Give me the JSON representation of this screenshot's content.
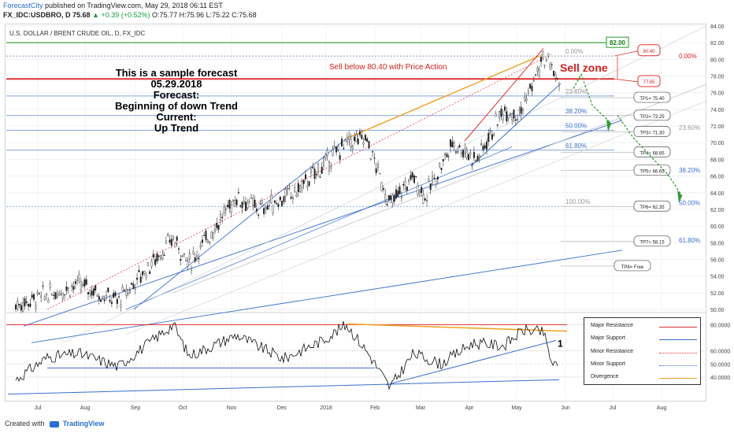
{
  "header": {
    "author": "ForecastCity",
    "published": "published on TradingView.com, May 29, 2018 06:11 EST",
    "symbol_line": "FX_IDC:USDBRO, D 75.68",
    "change": "+0.39 (+0.52%)",
    "ohlc": "O:75.77 H:75.96 L:75.22 C:75.68"
  },
  "chart": {
    "subtitle": "U.S. DOLLAR / BRENT CRUDE OIL, D, FX_IDC",
    "forecast_lines": [
      "This is a sample forecast",
      "05.29.2018",
      "Forecast:",
      "Beginning of down Trend",
      "Current:",
      "Up Trend"
    ],
    "sell_note": "Sell below 80.40 with Price Action",
    "sell_zone": "Sell zone",
    "price_axis": [
      "84.00",
      "82.00",
      "80.00",
      "78.00",
      "76.00",
      "74.00",
      "72.00",
      "70.00",
      "68.00",
      "66.00",
      "64.00",
      "62.00",
      "60.00",
      "58.00",
      "56.00",
      "54.00",
      "52.00",
      "50.00"
    ],
    "rsi_axis": [
      "80.0000",
      "60.0000",
      "50.0000",
      "40.0000"
    ],
    "time_axis": [
      "Jul",
      "Aug",
      "Sep",
      "Oct",
      "Nov",
      "Dec",
      "2018",
      "Feb",
      "Mar",
      "Apr",
      "May",
      "Jun",
      "Jul",
      "Aug"
    ],
    "level_82": "82.00",
    "zone_labels": [
      "80.40",
      "77.65"
    ],
    "tp_labels": [
      "TP1= 75.40",
      "TP2= 73.25",
      "TP3= 71.30",
      "TP4= 68.85",
      "TP5= 66.65",
      "TP6= 62.35",
      "TP7= 58.15",
      "TP8= Free"
    ],
    "fib_left": [
      "0.00%",
      "23.60%",
      "38.20%",
      "50.00%",
      "61.80%",
      "100.00%"
    ],
    "fib_right": [
      "0.00%",
      "23.60%",
      "38.20%",
      "50.00%",
      "61.80%"
    ],
    "rsi_marker": "1"
  },
  "legend": {
    "items": [
      {
        "label": "Major Resistance",
        "color": "#e03030",
        "style": "solid"
      },
      {
        "label": "Major Support",
        "color": "#3a6fd0",
        "style": "solid"
      },
      {
        "label": "Minor Resistance",
        "color": "#e03030",
        "style": "dotted"
      },
      {
        "label": "Minor Support",
        "color": "#3a6fd0",
        "style": "dotted"
      },
      {
        "label": "Divergence",
        "color": "#f0a020",
        "style": "solid"
      }
    ]
  },
  "footer": {
    "created_with": "Created with",
    "brand": "TradingView"
  },
  "colors": {
    "resistance": "#e03030",
    "support": "#3a6fd0",
    "divergence": "#f0a020",
    "level_green": "#2a9d2a",
    "arrow_green": "#2a9d2a"
  }
}
